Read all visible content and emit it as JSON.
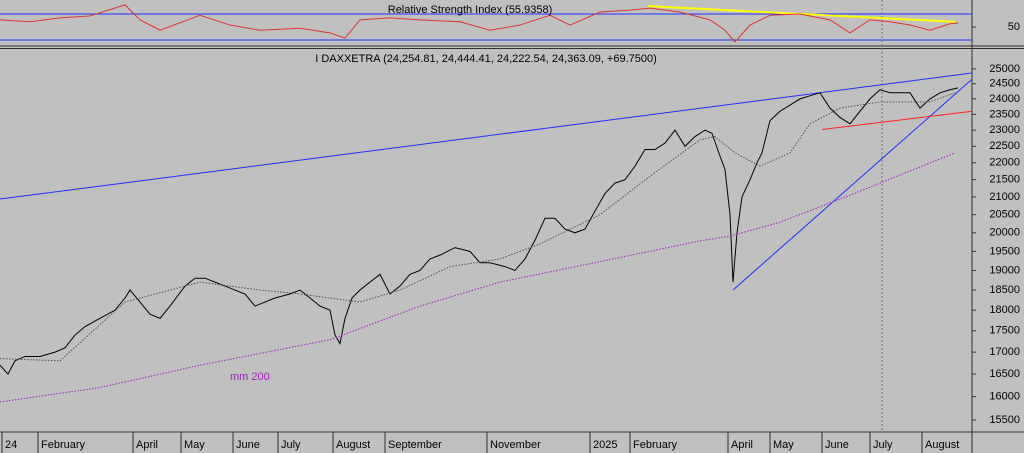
{
  "chart_data": [
    {
      "type": "line",
      "title": "Relative Strength Index (55.9358)",
      "x": [
        0,
        12,
        24,
        36,
        50,
        56,
        64,
        80,
        92,
        104,
        120,
        132,
        138,
        144,
        156,
        168,
        184,
        196,
        208,
        220,
        228,
        240,
        252,
        260,
        272,
        284,
        290,
        294,
        300,
        308,
        320,
        332,
        340,
        348,
        356,
        364,
        372,
        380,
        383.2
      ],
      "series": [
        {
          "color": "#e03030",
          "values": [
            61,
            58,
            64,
            67,
            84,
            61,
            45,
            68,
            53,
            45,
            48,
            41,
            33,
            61,
            64,
            61,
            58,
            45,
            53,
            68,
            53,
            73,
            76,
            79,
            73,
            61,
            45,
            27,
            53,
            68,
            70,
            61,
            41,
            61,
            58,
            53,
            45,
            55,
            55.94
          ]
        }
      ],
      "lines": [
        {
          "color": "#ffff00",
          "x": [
            259.2,
            382
          ],
          "values": [
            82,
            58
          ]
        }
      ],
      "levels": [
        30,
        70
      ],
      "level_color": "#2030ff",
      "marker_x": 352.8,
      "xlim": [
        0,
        388.8
      ],
      "ylim": [
        20.8,
        91.5
      ],
      "yticks": [
        50
      ]
    },
    {
      "type": "line",
      "title": "I DAXXETRA (24,254.81, 24,444.41, 24,222.54, 24,363.09, +69.7500)",
      "log_scale": true,
      "series": [
        {
          "color": "#000000",
          "x": [
            0,
            3.2,
            6,
            10,
            16,
            22,
            26,
            30,
            34,
            40,
            46,
            50,
            52,
            56,
            60,
            64,
            68,
            74,
            78,
            82,
            86,
            90,
            94,
            98,
            102,
            106,
            110,
            116,
            120,
            124,
            128,
            132,
            134,
            136,
            138,
            140.8,
            144,
            148,
            152,
            156,
            160,
            164,
            168,
            172,
            176,
            182,
            188,
            192,
            196,
            202,
            206,
            210,
            214,
            218,
            222,
            226,
            230,
            234,
            238,
            242,
            246,
            250,
            254,
            258,
            262,
            266,
            270,
            274,
            278,
            282,
            284.8,
            288,
            290,
            292,
            293.2,
            294.8,
            296.8,
            300,
            302.8,
            304.8,
            308,
            312,
            316,
            320,
            324,
            328,
            332,
            336,
            340,
            344,
            348,
            352,
            356,
            360,
            364,
            368,
            372,
            376,
            380,
            383.2
          ],
          "values": [
            16700,
            16500,
            16800,
            16900,
            16900,
            17000,
            17100,
            17400,
            17600,
            17800,
            18000,
            18300,
            18500,
            18200,
            17900,
            17800,
            18100,
            18600,
            18800,
            18800,
            18700,
            18600,
            18500,
            18400,
            18100,
            18200,
            18300,
            18400,
            18500,
            18300,
            18100,
            18000,
            17400,
            17200,
            17800,
            18300,
            18500,
            18700,
            18900,
            18400,
            18600,
            18900,
            19000,
            19300,
            19400,
            19600,
            19500,
            19200,
            19200,
            19100,
            19000,
            19300,
            19800,
            20400,
            20400,
            20100,
            20000,
            20100,
            20600,
            21100,
            21400,
            21500,
            21900,
            22400,
            22400,
            22600,
            23000,
            22500,
            22800,
            23000,
            22900,
            22200,
            21800,
            20500,
            18700,
            20000,
            21000,
            21500,
            22000,
            22300,
            23300,
            23600,
            23800,
            24000,
            24100,
            24200,
            23700,
            23400,
            23200,
            23600,
            24000,
            24300,
            24200,
            24200,
            24200,
            23700,
            24000,
            24200,
            24300,
            24363.09
          ]
        },
        {
          "color": "#505050",
          "style": "dotted",
          "x": [
            0,
            24,
            50,
            80,
            104,
            120,
            144,
            160,
            180,
            200,
            216,
            240,
            260,
            280,
            286,
            294,
            304,
            316,
            324,
            336,
            352,
            372,
            382
          ],
          "values": [
            16850,
            16800,
            18200,
            18700,
            18500,
            18400,
            18200,
            18500,
            19100,
            19300,
            19700,
            20500,
            21600,
            22700,
            22800,
            22300,
            21900,
            22300,
            23200,
            23700,
            23900,
            23900,
            24200
          ]
        },
        {
          "name": "mm 200",
          "color": "#a020c0",
          "style": "dotted",
          "x": [
            0,
            40,
            80,
            132,
            168,
            200,
            240,
            280,
            292,
            312,
            340,
            382
          ],
          "values": [
            15885,
            16200,
            16700,
            17290,
            18100,
            18700,
            19230,
            19780,
            19910,
            20290,
            21050,
            22300
          ]
        }
      ],
      "lines": [
        {
          "color": "#2030ff",
          "x": [
            0,
            388.8
          ],
          "values": [
            20940,
            24860
          ]
        },
        {
          "color": "#2030ff",
          "x": [
            293.2,
            388.8
          ],
          "values": [
            18500,
            24650
          ]
        },
        {
          "color": "#ff2020",
          "x": [
            328.8,
            388.8
          ],
          "values": [
            23020,
            23600
          ]
        }
      ],
      "marker_x": 352.8,
      "xlim": [
        0,
        388.8
      ],
      "ylim": [
        15248,
        25722
      ],
      "yticks": [
        15500,
        16000,
        16500,
        17000,
        17500,
        18000,
        18500,
        19000,
        19500,
        20000,
        20500,
        21000,
        21500,
        22000,
        22500,
        23000,
        23500,
        24000,
        24500,
        25000
      ],
      "xticks": [
        {
          "value": 0.8,
          "label": "24"
        },
        {
          "value": 15.2,
          "label": "February"
        },
        {
          "value": 53.2,
          "label": "April"
        },
        {
          "value": 72.4,
          "label": "May"
        },
        {
          "value": 93.2,
          "label": "June"
        },
        {
          "value": 111.2,
          "label": "July"
        },
        {
          "value": 133.2,
          "label": "August"
        },
        {
          "value": 154,
          "label": "September"
        },
        {
          "value": 194.8,
          "label": "November"
        },
        {
          "value": 236,
          "label": "2025"
        },
        {
          "value": 252,
          "label": "February"
        },
        {
          "value": 291.2,
          "label": "April"
        },
        {
          "value": 308,
          "label": "May"
        },
        {
          "value": 328.8,
          "label": "June"
        },
        {
          "value": 348,
          "label": "July"
        },
        {
          "value": 368.8,
          "label": "August"
        }
      ]
    }
  ]
}
